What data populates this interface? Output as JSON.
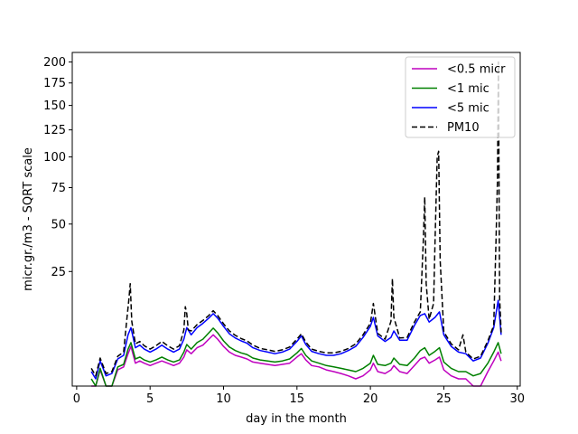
{
  "chart_data": {
    "type": "line",
    "title": "",
    "xlabel": "day in the month",
    "ylabel": "micr.gr./m3 - SQRT scale",
    "xlim": [
      -0.3,
      30.2
    ],
    "ylim": [
      0,
      212
    ],
    "y_scale": "sqrt",
    "xticks": [
      0,
      5,
      10,
      15,
      20,
      25,
      30
    ],
    "yticks": [
      25,
      50,
      75,
      100,
      125,
      150,
      175,
      200
    ],
    "legend_position": "upper right",
    "grid": false,
    "series": [
      {
        "name": "<0.5 micr",
        "color": "#bf00bf",
        "style": "solid",
        "points": [
          [
            1.0,
            0.0
          ],
          [
            1.3,
            0.0
          ],
          [
            1.6,
            0.5
          ],
          [
            2.0,
            0.0
          ],
          [
            2.4,
            0.0
          ],
          [
            2.8,
            0.5
          ],
          [
            3.2,
            0.7
          ],
          [
            3.5,
            2.0
          ],
          [
            3.7,
            3.0
          ],
          [
            4.0,
            1.0
          ],
          [
            4.3,
            1.2
          ],
          [
            4.6,
            1.0
          ],
          [
            5.0,
            0.8
          ],
          [
            5.4,
            1.0
          ],
          [
            5.8,
            1.2
          ],
          [
            6.2,
            1.0
          ],
          [
            6.6,
            0.8
          ],
          [
            7.0,
            1.0
          ],
          [
            7.3,
            1.6
          ],
          [
            7.5,
            2.5
          ],
          [
            7.8,
            2.0
          ],
          [
            8.2,
            2.8
          ],
          [
            8.6,
            3.2
          ],
          [
            9.0,
            4.2
          ],
          [
            9.3,
            5.0
          ],
          [
            9.6,
            4.2
          ],
          [
            10.0,
            3.0
          ],
          [
            10.4,
            2.2
          ],
          [
            10.8,
            1.8
          ],
          [
            11.2,
            1.6
          ],
          [
            11.6,
            1.4
          ],
          [
            12.0,
            1.1
          ],
          [
            12.5,
            1.0
          ],
          [
            13.0,
            0.9
          ],
          [
            13.5,
            0.8
          ],
          [
            14.0,
            0.9
          ],
          [
            14.5,
            1.0
          ],
          [
            15.0,
            1.6
          ],
          [
            15.3,
            2.0
          ],
          [
            15.6,
            1.3
          ],
          [
            16.0,
            0.8
          ],
          [
            16.5,
            0.7
          ],
          [
            17.0,
            0.5
          ],
          [
            17.5,
            0.4
          ],
          [
            18.0,
            0.3
          ],
          [
            18.5,
            0.2
          ],
          [
            19.0,
            0.1
          ],
          [
            19.5,
            0.2
          ],
          [
            20.0,
            0.5
          ],
          [
            20.2,
            1.0
          ],
          [
            20.5,
            0.4
          ],
          [
            21.0,
            0.3
          ],
          [
            21.4,
            0.5
          ],
          [
            21.6,
            0.8
          ],
          [
            22.0,
            0.4
          ],
          [
            22.5,
            0.3
          ],
          [
            23.0,
            0.8
          ],
          [
            23.4,
            1.4
          ],
          [
            23.7,
            1.6
          ],
          [
            24.0,
            1.0
          ],
          [
            24.4,
            1.3
          ],
          [
            24.7,
            1.6
          ],
          [
            25.0,
            0.5
          ],
          [
            25.5,
            0.2
          ],
          [
            26.0,
            0.1
          ],
          [
            26.5,
            0.1
          ],
          [
            27.0,
            0.0
          ],
          [
            27.5,
            0.0
          ],
          [
            28.0,
            0.4
          ],
          [
            28.4,
            1.2
          ],
          [
            28.7,
            2.2
          ],
          [
            28.9,
            1.2
          ]
        ]
      },
      {
        "name": "<1 mic",
        "color": "#008000",
        "style": "solid",
        "points": [
          [
            1.0,
            0.1
          ],
          [
            1.3,
            0.0
          ],
          [
            1.6,
            0.6
          ],
          [
            2.0,
            0.0
          ],
          [
            2.4,
            0.0
          ],
          [
            2.8,
            0.7
          ],
          [
            3.2,
            0.9
          ],
          [
            3.5,
            2.6
          ],
          [
            3.7,
            3.6
          ],
          [
            4.0,
            1.4
          ],
          [
            4.3,
            1.6
          ],
          [
            4.6,
            1.3
          ],
          [
            5.0,
            1.1
          ],
          [
            5.4,
            1.3
          ],
          [
            5.8,
            1.6
          ],
          [
            6.2,
            1.3
          ],
          [
            6.6,
            1.1
          ],
          [
            7.0,
            1.3
          ],
          [
            7.3,
            2.2
          ],
          [
            7.5,
            3.3
          ],
          [
            7.8,
            2.6
          ],
          [
            8.2,
            3.6
          ],
          [
            8.6,
            4.2
          ],
          [
            9.0,
            5.4
          ],
          [
            9.3,
            6.4
          ],
          [
            9.6,
            5.4
          ],
          [
            10.0,
            3.9
          ],
          [
            10.4,
            2.9
          ],
          [
            10.8,
            2.4
          ],
          [
            11.2,
            2.1
          ],
          [
            11.6,
            1.9
          ],
          [
            12.0,
            1.5
          ],
          [
            12.5,
            1.3
          ],
          [
            13.0,
            1.2
          ],
          [
            13.5,
            1.1
          ],
          [
            14.0,
            1.2
          ],
          [
            14.5,
            1.4
          ],
          [
            15.0,
            2.1
          ],
          [
            15.3,
            2.7
          ],
          [
            15.6,
            1.8
          ],
          [
            16.0,
            1.2
          ],
          [
            16.5,
            1.0
          ],
          [
            17.0,
            0.8
          ],
          [
            17.5,
            0.7
          ],
          [
            18.0,
            0.6
          ],
          [
            18.5,
            0.5
          ],
          [
            19.0,
            0.4
          ],
          [
            19.5,
            0.6
          ],
          [
            20.0,
            1.0
          ],
          [
            20.2,
            1.8
          ],
          [
            20.5,
            0.9
          ],
          [
            21.0,
            0.8
          ],
          [
            21.4,
            1.0
          ],
          [
            21.6,
            1.5
          ],
          [
            22.0,
            0.9
          ],
          [
            22.5,
            0.8
          ],
          [
            23.0,
            1.5
          ],
          [
            23.4,
            2.4
          ],
          [
            23.7,
            2.8
          ],
          [
            24.0,
            1.8
          ],
          [
            24.4,
            2.3
          ],
          [
            24.7,
            2.8
          ],
          [
            25.0,
            1.1
          ],
          [
            25.5,
            0.6
          ],
          [
            26.0,
            0.4
          ],
          [
            26.5,
            0.4
          ],
          [
            27.0,
            0.2
          ],
          [
            27.5,
            0.3
          ],
          [
            28.0,
            1.0
          ],
          [
            28.4,
            2.2
          ],
          [
            28.7,
            3.6
          ],
          [
            28.9,
            2.0
          ]
        ]
      },
      {
        "name": "<5 mic",
        "color": "#0000ff",
        "style": "solid",
        "points": [
          [
            1.0,
            0.4
          ],
          [
            1.3,
            0.1
          ],
          [
            1.6,
            1.2
          ],
          [
            2.0,
            0.2
          ],
          [
            2.4,
            0.3
          ],
          [
            2.8,
            1.4
          ],
          [
            3.2,
            1.8
          ],
          [
            3.5,
            5.0
          ],
          [
            3.7,
            6.5
          ],
          [
            4.0,
            2.8
          ],
          [
            4.3,
            3.2
          ],
          [
            4.6,
            2.6
          ],
          [
            5.0,
            2.2
          ],
          [
            5.4,
            2.6
          ],
          [
            5.8,
            3.2
          ],
          [
            6.2,
            2.6
          ],
          [
            6.6,
            2.2
          ],
          [
            7.0,
            2.6
          ],
          [
            7.3,
            4.2
          ],
          [
            7.5,
            6.5
          ],
          [
            7.8,
            5.0
          ],
          [
            8.2,
            6.5
          ],
          [
            8.6,
            7.5
          ],
          [
            9.0,
            8.8
          ],
          [
            9.3,
            10.0
          ],
          [
            9.6,
            8.8
          ],
          [
            10.0,
            6.8
          ],
          [
            10.4,
            5.2
          ],
          [
            10.8,
            4.4
          ],
          [
            11.2,
            3.9
          ],
          [
            11.6,
            3.5
          ],
          [
            12.0,
            2.8
          ],
          [
            12.5,
            2.4
          ],
          [
            13.0,
            2.2
          ],
          [
            13.5,
            2.0
          ],
          [
            14.0,
            2.2
          ],
          [
            14.5,
            2.6
          ],
          [
            15.0,
            3.8
          ],
          [
            15.3,
            4.8
          ],
          [
            15.6,
            3.3
          ],
          [
            16.0,
            2.3
          ],
          [
            16.5,
            2.0
          ],
          [
            17.0,
            1.8
          ],
          [
            17.5,
            1.8
          ],
          [
            18.0,
            2.0
          ],
          [
            18.5,
            2.4
          ],
          [
            19.0,
            3.0
          ],
          [
            19.5,
            4.5
          ],
          [
            20.0,
            6.8
          ],
          [
            20.2,
            9.0
          ],
          [
            20.5,
            4.8
          ],
          [
            21.0,
            3.8
          ],
          [
            21.4,
            4.5
          ],
          [
            21.6,
            5.8
          ],
          [
            22.0,
            4.0
          ],
          [
            22.5,
            4.0
          ],
          [
            23.0,
            7.0
          ],
          [
            23.4,
            9.5
          ],
          [
            23.7,
            10.0
          ],
          [
            24.0,
            7.8
          ],
          [
            24.4,
            9.0
          ],
          [
            24.7,
            10.5
          ],
          [
            25.0,
            5.0
          ],
          [
            25.5,
            3.0
          ],
          [
            26.0,
            2.2
          ],
          [
            26.5,
            2.0
          ],
          [
            27.0,
            1.2
          ],
          [
            27.5,
            1.5
          ],
          [
            28.0,
            3.5
          ],
          [
            28.4,
            6.5
          ],
          [
            28.7,
            14.0
          ],
          [
            28.9,
            5.0
          ]
        ]
      },
      {
        "name": "PM10",
        "color": "#000000",
        "style": "dashed",
        "points": [
          [
            1.0,
            0.6
          ],
          [
            1.3,
            0.2
          ],
          [
            1.6,
            1.5
          ],
          [
            2.0,
            0.3
          ],
          [
            2.4,
            0.4
          ],
          [
            2.8,
            1.7
          ],
          [
            3.2,
            2.2
          ],
          [
            3.4,
            8.0
          ],
          [
            3.55,
            14.0
          ],
          [
            3.65,
            20.0
          ],
          [
            3.75,
            8.0
          ],
          [
            4.0,
            3.4
          ],
          [
            4.3,
            3.8
          ],
          [
            4.6,
            3.1
          ],
          [
            5.0,
            2.6
          ],
          [
            5.4,
            3.1
          ],
          [
            5.8,
            3.8
          ],
          [
            6.2,
            3.1
          ],
          [
            6.6,
            2.6
          ],
          [
            7.0,
            3.1
          ],
          [
            7.3,
            6.0
          ],
          [
            7.4,
            12.0
          ],
          [
            7.5,
            10.0
          ],
          [
            7.6,
            6.0
          ],
          [
            7.8,
            5.8
          ],
          [
            8.2,
            7.2
          ],
          [
            8.6,
            8.2
          ],
          [
            9.0,
            9.5
          ],
          [
            9.3,
            10.8
          ],
          [
            9.6,
            9.5
          ],
          [
            10.0,
            7.4
          ],
          [
            10.4,
            5.8
          ],
          [
            10.8,
            4.9
          ],
          [
            11.2,
            4.3
          ],
          [
            11.6,
            3.9
          ],
          [
            12.0,
            3.2
          ],
          [
            12.5,
            2.7
          ],
          [
            13.0,
            2.5
          ],
          [
            13.5,
            2.3
          ],
          [
            14.0,
            2.5
          ],
          [
            14.5,
            2.9
          ],
          [
            15.0,
            4.2
          ],
          [
            15.3,
            5.2
          ],
          [
            15.6,
            3.7
          ],
          [
            16.0,
            2.6
          ],
          [
            16.5,
            2.3
          ],
          [
            17.0,
            2.1
          ],
          [
            17.5,
            2.1
          ],
          [
            18.0,
            2.3
          ],
          [
            18.5,
            2.7
          ],
          [
            19.0,
            3.4
          ],
          [
            19.5,
            5.0
          ],
          [
            20.0,
            7.5
          ],
          [
            20.2,
            13.0
          ],
          [
            20.5,
            5.3
          ],
          [
            21.0,
            4.2
          ],
          [
            21.4,
            8.0
          ],
          [
            21.5,
            22.0
          ],
          [
            21.6,
            9.0
          ],
          [
            21.8,
            6.5
          ],
          [
            22.0,
            4.4
          ],
          [
            22.5,
            4.5
          ],
          [
            23.0,
            7.8
          ],
          [
            23.4,
            10.5
          ],
          [
            23.6,
            40.0
          ],
          [
            23.7,
            68.0
          ],
          [
            23.8,
            20.0
          ],
          [
            24.0,
            8.5
          ],
          [
            24.3,
            13.0
          ],
          [
            24.4,
            40.0
          ],
          [
            24.55,
            100.0
          ],
          [
            24.65,
            105.0
          ],
          [
            24.75,
            30.0
          ],
          [
            25.0,
            5.6
          ],
          [
            25.5,
            3.4
          ],
          [
            26.0,
            2.5
          ],
          [
            26.3,
            5.0
          ],
          [
            26.5,
            2.2
          ],
          [
            27.0,
            1.4
          ],
          [
            27.5,
            1.7
          ],
          [
            28.0,
            3.9
          ],
          [
            28.4,
            7.0
          ],
          [
            28.55,
            40.0
          ],
          [
            28.65,
            80.0
          ],
          [
            28.72,
            200.0
          ],
          [
            28.8,
            15.0
          ],
          [
            28.9,
            5.5
          ]
        ]
      }
    ]
  }
}
